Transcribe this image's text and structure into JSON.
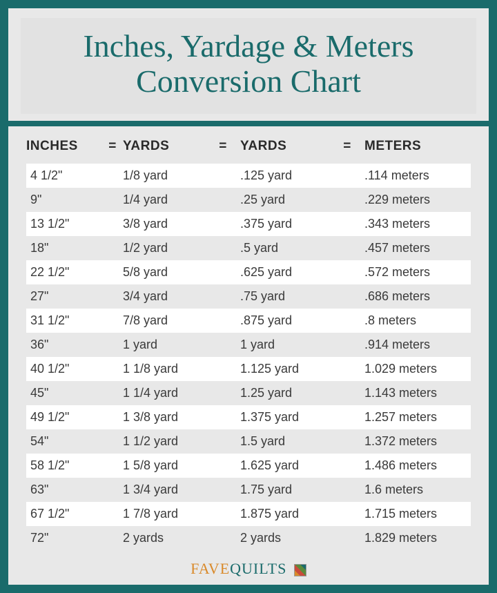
{
  "title_line1": "Inches, Yardage & Meters",
  "title_line2": "Conversion Chart",
  "headers": {
    "inches": "INCHES",
    "eq": "=",
    "yards_frac": "YARDS",
    "yards_dec": "YARDS",
    "meters": "METERS"
  },
  "rows": [
    {
      "inches": "4 1/2\"",
      "yfrac": "1/8 yard",
      "ydec": ".125 yard",
      "meters": ".114 meters"
    },
    {
      "inches": "9\"",
      "yfrac": "1/4 yard",
      "ydec": ".25 yard",
      "meters": ".229 meters"
    },
    {
      "inches": "13 1/2\"",
      "yfrac": "3/8 yard",
      "ydec": ".375 yard",
      "meters": ".343 meters"
    },
    {
      "inches": "18\"",
      "yfrac": "1/2 yard",
      "ydec": ".5 yard",
      "meters": ".457 meters"
    },
    {
      "inches": "22 1/2\"",
      "yfrac": "5/8 yard",
      "ydec": ".625 yard",
      "meters": ".572 meters"
    },
    {
      "inches": "27\"",
      "yfrac": "3/4 yard",
      "ydec": ".75 yard",
      "meters": ".686 meters"
    },
    {
      "inches": "31 1/2\"",
      "yfrac": "7/8 yard",
      "ydec": ".875 yard",
      "meters": ".8 meters"
    },
    {
      "inches": "36\"",
      "yfrac": "1 yard",
      "ydec": "1 yard",
      "meters": ".914 meters"
    },
    {
      "inches": "40 1/2\"",
      "yfrac": "1 1/8 yard",
      "ydec": "1.125 yard",
      "meters": "1.029 meters"
    },
    {
      "inches": "45\"",
      "yfrac": "1 1/4 yard",
      "ydec": "1.25 yard",
      "meters": "1.143 meters"
    },
    {
      "inches": "49 1/2\"",
      "yfrac": "1 3/8 yard",
      "ydec": "1.375 yard",
      "meters": "1.257 meters"
    },
    {
      "inches": "54\"",
      "yfrac": "1 1/2 yard",
      "ydec": "1.5 yard",
      "meters": "1.372 meters"
    },
    {
      "inches": "58 1/2\"",
      "yfrac": "1 5/8 yard",
      "ydec": "1.625 yard",
      "meters": "1.486 meters"
    },
    {
      "inches": "63\"",
      "yfrac": "1 3/4 yard",
      "ydec": "1.75 yard",
      "meters": "1.6 meters"
    },
    {
      "inches": "67 1/2\"",
      "yfrac": "1 7/8 yard",
      "ydec": "1.875 yard",
      "meters": "1.715 meters"
    },
    {
      "inches": "72\"",
      "yfrac": "2 yards",
      "ydec": "2 yards",
      "meters": "1.829 meters"
    }
  ],
  "footer": {
    "fave": "FAVE",
    "quilts": "QUILTS"
  },
  "colors": {
    "teal": "#1a6b6b",
    "bg_gray": "#e8e8e8",
    "title_bg": "#e2e2e2",
    "row_white": "#ffffff",
    "text": "#3a3a3a",
    "orange": "#d98a2b"
  }
}
